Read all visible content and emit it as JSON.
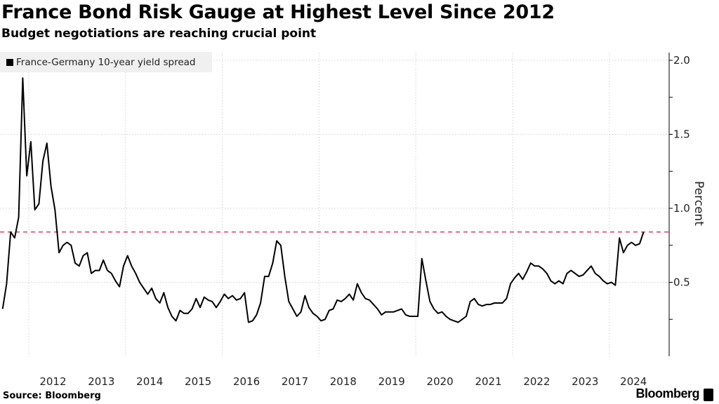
{
  "header": {
    "title": "France Bond Risk Gauge at Highest Level Since 2012",
    "subtitle": "Budget negotiations are reaching crucial point"
  },
  "footer": {
    "source": "Source: Bloomberg",
    "brand": "Bloomberg"
  },
  "chart_data": {
    "type": "line",
    "title": "France Bond Risk Gauge at Highest Level Since 2012",
    "subtitle": "Budget negotiations are reaching crucial point",
    "ylabel": "Percent",
    "xlabel": "",
    "ylim": [
      0,
      2.05
    ],
    "xlim": [
      "2011-05",
      "2025-03"
    ],
    "y_axis_side": "right",
    "yticks": [
      0.5,
      1.0,
      1.5,
      2.0
    ],
    "ytick_labels": [
      "0.5",
      "1.0",
      "1.5",
      "2.0"
    ],
    "xtick_labels": [
      "2012",
      "2013",
      "2014",
      "2015",
      "2016",
      "2017",
      "2018",
      "2019",
      "2020",
      "2021",
      "2022",
      "2023",
      "2024"
    ],
    "grid": "dotted",
    "legend": {
      "placement": "top-left",
      "entries": [
        "France-Germany 10-year yield spread"
      ]
    },
    "reference_line": {
      "value": 0.84,
      "style": "dashed",
      "color": "#e0405a"
    },
    "colors": {
      "series": "#000000",
      "reference": "#e0405a",
      "legend_bg": "#f0f0f0"
    },
    "series": [
      {
        "name": "France-Germany 10-year yield spread",
        "points": [
          [
            "2011-06",
            0.32
          ],
          [
            "2011-07",
            0.49
          ],
          [
            "2011-08",
            0.84
          ],
          [
            "2011-09",
            0.8
          ],
          [
            "2011-10",
            0.94
          ],
          [
            "2011-11",
            1.88
          ],
          [
            "2011-12",
            1.22
          ],
          [
            "2012-01",
            1.45
          ],
          [
            "2012-02",
            0.99
          ],
          [
            "2012-03",
            1.03
          ],
          [
            "2012-04",
            1.32
          ],
          [
            "2012-05",
            1.44
          ],
          [
            "2012-06",
            1.15
          ],
          [
            "2012-07",
            0.99
          ],
          [
            "2012-08",
            0.7
          ],
          [
            "2012-09",
            0.75
          ],
          [
            "2012-10",
            0.77
          ],
          [
            "2012-11",
            0.75
          ],
          [
            "2012-12",
            0.63
          ],
          [
            "2013-01",
            0.61
          ],
          [
            "2013-02",
            0.68
          ],
          [
            "2013-03",
            0.7
          ],
          [
            "2013-04",
            0.56
          ],
          [
            "2013-05",
            0.58
          ],
          [
            "2013-06",
            0.58
          ],
          [
            "2013-07",
            0.65
          ],
          [
            "2013-08",
            0.58
          ],
          [
            "2013-09",
            0.56
          ],
          [
            "2013-10",
            0.51
          ],
          [
            "2013-11",
            0.47
          ],
          [
            "2013-12",
            0.61
          ],
          [
            "2014-01",
            0.68
          ],
          [
            "2014-02",
            0.61
          ],
          [
            "2014-03",
            0.56
          ],
          [
            "2014-04",
            0.5
          ],
          [
            "2014-05",
            0.46
          ],
          [
            "2014-06",
            0.42
          ],
          [
            "2014-07",
            0.46
          ],
          [
            "2014-08",
            0.39
          ],
          [
            "2014-09",
            0.36
          ],
          [
            "2014-10",
            0.43
          ],
          [
            "2014-11",
            0.33
          ],
          [
            "2014-12",
            0.27
          ],
          [
            "2015-01",
            0.24
          ],
          [
            "2015-02",
            0.31
          ],
          [
            "2015-03",
            0.29
          ],
          [
            "2015-04",
            0.29
          ],
          [
            "2015-05",
            0.32
          ],
          [
            "2015-06",
            0.39
          ],
          [
            "2015-07",
            0.33
          ],
          [
            "2015-08",
            0.4
          ],
          [
            "2015-09",
            0.38
          ],
          [
            "2015-10",
            0.37
          ],
          [
            "2015-11",
            0.33
          ],
          [
            "2015-12",
            0.37
          ],
          [
            "2016-01",
            0.42
          ],
          [
            "2016-02",
            0.39
          ],
          [
            "2016-03",
            0.41
          ],
          [
            "2016-04",
            0.38
          ],
          [
            "2016-05",
            0.39
          ],
          [
            "2016-06",
            0.43
          ],
          [
            "2016-07",
            0.23
          ],
          [
            "2016-08",
            0.24
          ],
          [
            "2016-09",
            0.28
          ],
          [
            "2016-10",
            0.36
          ],
          [
            "2016-11",
            0.54
          ],
          [
            "2016-12",
            0.54
          ],
          [
            "2017-01",
            0.63
          ],
          [
            "2017-02",
            0.78
          ],
          [
            "2017-03",
            0.75
          ],
          [
            "2017-04",
            0.54
          ],
          [
            "2017-05",
            0.37
          ],
          [
            "2017-06",
            0.32
          ],
          [
            "2017-07",
            0.27
          ],
          [
            "2017-08",
            0.3
          ],
          [
            "2017-09",
            0.41
          ],
          [
            "2017-10",
            0.33
          ],
          [
            "2017-11",
            0.29
          ],
          [
            "2017-12",
            0.27
          ],
          [
            "2018-01",
            0.24
          ],
          [
            "2018-02",
            0.25
          ],
          [
            "2018-03",
            0.31
          ],
          [
            "2018-04",
            0.32
          ],
          [
            "2018-05",
            0.38
          ],
          [
            "2018-06",
            0.37
          ],
          [
            "2018-07",
            0.39
          ],
          [
            "2018-08",
            0.42
          ],
          [
            "2018-09",
            0.38
          ],
          [
            "2018-10",
            0.49
          ],
          [
            "2018-11",
            0.43
          ],
          [
            "2018-12",
            0.39
          ],
          [
            "2019-01",
            0.38
          ],
          [
            "2019-02",
            0.35
          ],
          [
            "2019-03",
            0.32
          ],
          [
            "2019-04",
            0.28
          ],
          [
            "2019-05",
            0.3
          ],
          [
            "2019-06",
            0.3
          ],
          [
            "2019-07",
            0.3
          ],
          [
            "2019-08",
            0.31
          ],
          [
            "2019-09",
            0.32
          ],
          [
            "2019-10",
            0.28
          ],
          [
            "2019-11",
            0.27
          ],
          [
            "2019-12",
            0.27
          ],
          [
            "2020-01",
            0.27
          ],
          [
            "2020-02",
            0.66
          ],
          [
            "2020-03",
            0.51
          ],
          [
            "2020-04",
            0.37
          ],
          [
            "2020-05",
            0.32
          ],
          [
            "2020-06",
            0.29
          ],
          [
            "2020-07",
            0.3
          ],
          [
            "2020-08",
            0.27
          ],
          [
            "2020-09",
            0.25
          ],
          [
            "2020-10",
            0.24
          ],
          [
            "2020-11",
            0.23
          ],
          [
            "2020-12",
            0.25
          ],
          [
            "2021-01",
            0.27
          ],
          [
            "2021-02",
            0.37
          ],
          [
            "2021-03",
            0.39
          ],
          [
            "2021-04",
            0.35
          ],
          [
            "2021-05",
            0.34
          ],
          [
            "2021-06",
            0.35
          ],
          [
            "2021-07",
            0.35
          ],
          [
            "2021-08",
            0.36
          ],
          [
            "2021-09",
            0.36
          ],
          [
            "2021-10",
            0.36
          ],
          [
            "2021-11",
            0.39
          ],
          [
            "2021-12",
            0.49
          ],
          [
            "2022-01",
            0.53
          ],
          [
            "2022-02",
            0.56
          ],
          [
            "2022-03",
            0.52
          ],
          [
            "2022-04",
            0.57
          ],
          [
            "2022-05",
            0.63
          ],
          [
            "2022-06",
            0.61
          ],
          [
            "2022-07",
            0.61
          ],
          [
            "2022-08",
            0.59
          ],
          [
            "2022-09",
            0.56
          ],
          [
            "2022-10",
            0.51
          ],
          [
            "2022-11",
            0.49
          ],
          [
            "2022-12",
            0.51
          ],
          [
            "2023-01",
            0.49
          ],
          [
            "2023-02",
            0.56
          ],
          [
            "2023-03",
            0.58
          ],
          [
            "2023-04",
            0.56
          ],
          [
            "2023-05",
            0.54
          ],
          [
            "2023-06",
            0.55
          ],
          [
            "2023-07",
            0.58
          ],
          [
            "2023-08",
            0.61
          ],
          [
            "2023-09",
            0.56
          ],
          [
            "2023-10",
            0.54
          ],
          [
            "2023-11",
            0.51
          ],
          [
            "2023-12",
            0.49
          ],
          [
            "2024-01",
            0.5
          ],
          [
            "2024-02",
            0.48
          ],
          [
            "2024-03",
            0.8
          ],
          [
            "2024-04",
            0.7
          ],
          [
            "2024-05",
            0.75
          ],
          [
            "2024-06",
            0.77
          ],
          [
            "2024-07",
            0.75
          ],
          [
            "2024-08",
            0.76
          ],
          [
            "2024-09",
            0.84
          ]
        ]
      }
    ]
  }
}
